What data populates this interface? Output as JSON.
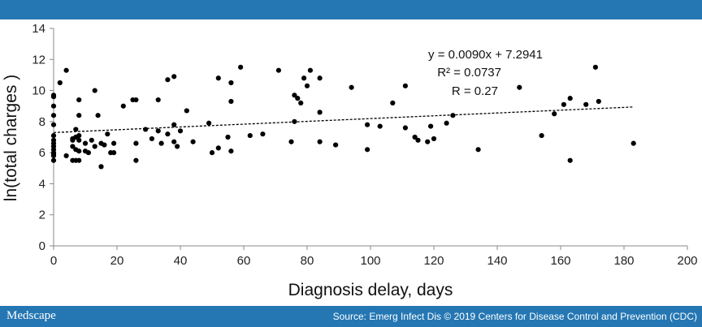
{
  "header": {},
  "footer": {
    "brand": "Medscape",
    "source": "Source: Emerg Infect Dis © 2019 Centers for Disease Control and Prevention (CDC)"
  },
  "colors": {
    "banner": "#2477b3",
    "points": "#000000"
  },
  "chart_data": {
    "type": "scatter",
    "xlabel": "Diagnosis delay, days",
    "ylabel": "ln(total charges )",
    "xlim": [
      0,
      200
    ],
    "ylim": [
      0,
      14
    ],
    "x_ticks": [
      "0",
      "20",
      "40",
      "60",
      "80",
      "100",
      "120",
      "140",
      "160",
      "180",
      "200"
    ],
    "y_ticks": [
      "0",
      "2",
      "4",
      "6",
      "8",
      "10",
      "12",
      "14"
    ],
    "grid": false,
    "legend": "none",
    "trendline": {
      "slope": 0.009,
      "intercept": 7.2941,
      "x_range": [
        0,
        183
      ],
      "style": "dashed"
    },
    "annotations": [
      "y = 0.0090x + 7.2941",
      "R² = 0.0737",
      "R = 0.27"
    ],
    "points": [
      [
        0,
        9.7
      ],
      [
        0,
        9.6
      ],
      [
        0,
        9.0
      ],
      [
        0,
        8.4
      ],
      [
        0,
        7.8
      ],
      [
        0,
        7.1
      ],
      [
        0,
        6.8
      ],
      [
        0,
        6.6
      ],
      [
        0,
        6.4
      ],
      [
        0,
        6.2
      ],
      [
        0,
        6.0
      ],
      [
        0,
        5.9
      ],
      [
        0,
        5.8
      ],
      [
        0,
        5.5
      ],
      [
        2,
        10.5
      ],
      [
        4,
        11.3
      ],
      [
        4,
        5.8
      ],
      [
        6,
        6.9
      ],
      [
        6,
        6.8
      ],
      [
        6,
        6.4
      ],
      [
        6,
        5.5
      ],
      [
        7,
        7.5
      ],
      [
        7,
        7.0
      ],
      [
        7,
        6.2
      ],
      [
        7,
        5.5
      ],
      [
        8,
        9.4
      ],
      [
        8,
        8.4
      ],
      [
        8,
        7.1
      ],
      [
        8,
        6.8
      ],
      [
        8,
        6.1
      ],
      [
        8,
        5.5
      ],
      [
        10,
        6.1
      ],
      [
        10,
        6.6
      ],
      [
        11,
        6.0
      ],
      [
        12,
        6.8
      ],
      [
        13,
        6.4
      ],
      [
        13,
        10.0
      ],
      [
        14,
        8.4
      ],
      [
        15,
        5.1
      ],
      [
        15,
        6.6
      ],
      [
        16,
        6.5
      ],
      [
        17,
        7.2
      ],
      [
        18,
        6.0
      ],
      [
        19,
        6.6
      ],
      [
        19,
        6.0
      ],
      [
        22,
        9.0
      ],
      [
        25,
        9.4
      ],
      [
        26,
        5.5
      ],
      [
        26,
        9.4
      ],
      [
        26,
        6.6
      ],
      [
        29,
        7.5
      ],
      [
        31,
        6.9
      ],
      [
        33,
        9.4
      ],
      [
        33,
        7.4
      ],
      [
        34,
        6.6
      ],
      [
        36,
        10.7
      ],
      [
        36,
        7.2
      ],
      [
        38,
        10.9
      ],
      [
        38,
        7.8
      ],
      [
        38,
        6.7
      ],
      [
        39,
        6.4
      ],
      [
        40,
        7.4
      ],
      [
        42,
        8.7
      ],
      [
        44,
        6.7
      ],
      [
        49,
        7.9
      ],
      [
        50,
        6.0
      ],
      [
        52,
        10.8
      ],
      [
        52,
        6.3
      ],
      [
        55,
        7.0
      ],
      [
        56,
        10.5
      ],
      [
        56,
        9.3
      ],
      [
        56,
        6.1
      ],
      [
        59,
        11.5
      ],
      [
        62,
        7.1
      ],
      [
        66,
        7.2
      ],
      [
        71,
        11.3
      ],
      [
        75,
        6.7
      ],
      [
        76,
        9.7
      ],
      [
        76,
        8.0
      ],
      [
        77,
        9.5
      ],
      [
        78,
        9.2
      ],
      [
        79,
        10.8
      ],
      [
        80,
        10.3
      ],
      [
        81,
        11.3
      ],
      [
        84,
        10.8
      ],
      [
        84,
        8.6
      ],
      [
        84,
        6.7
      ],
      [
        89,
        6.5
      ],
      [
        94,
        10.2
      ],
      [
        99,
        7.8
      ],
      [
        99,
        6.2
      ],
      [
        103,
        7.7
      ],
      [
        107,
        9.2
      ],
      [
        111,
        10.3
      ],
      [
        111,
        7.6
      ],
      [
        114,
        7.0
      ],
      [
        115,
        6.8
      ],
      [
        118,
        6.7
      ],
      [
        119,
        7.7
      ],
      [
        120,
        6.9
      ],
      [
        124,
        7.9
      ],
      [
        126,
        8.4
      ],
      [
        134,
        6.2
      ],
      [
        147,
        10.2
      ],
      [
        154,
        7.1
      ],
      [
        158,
        8.5
      ],
      [
        161,
        9.1
      ],
      [
        163,
        9.5
      ],
      [
        163,
        5.5
      ],
      [
        168,
        9.1
      ],
      [
        171,
        11.5
      ],
      [
        172,
        9.3
      ],
      [
        183,
        6.6
      ]
    ]
  }
}
